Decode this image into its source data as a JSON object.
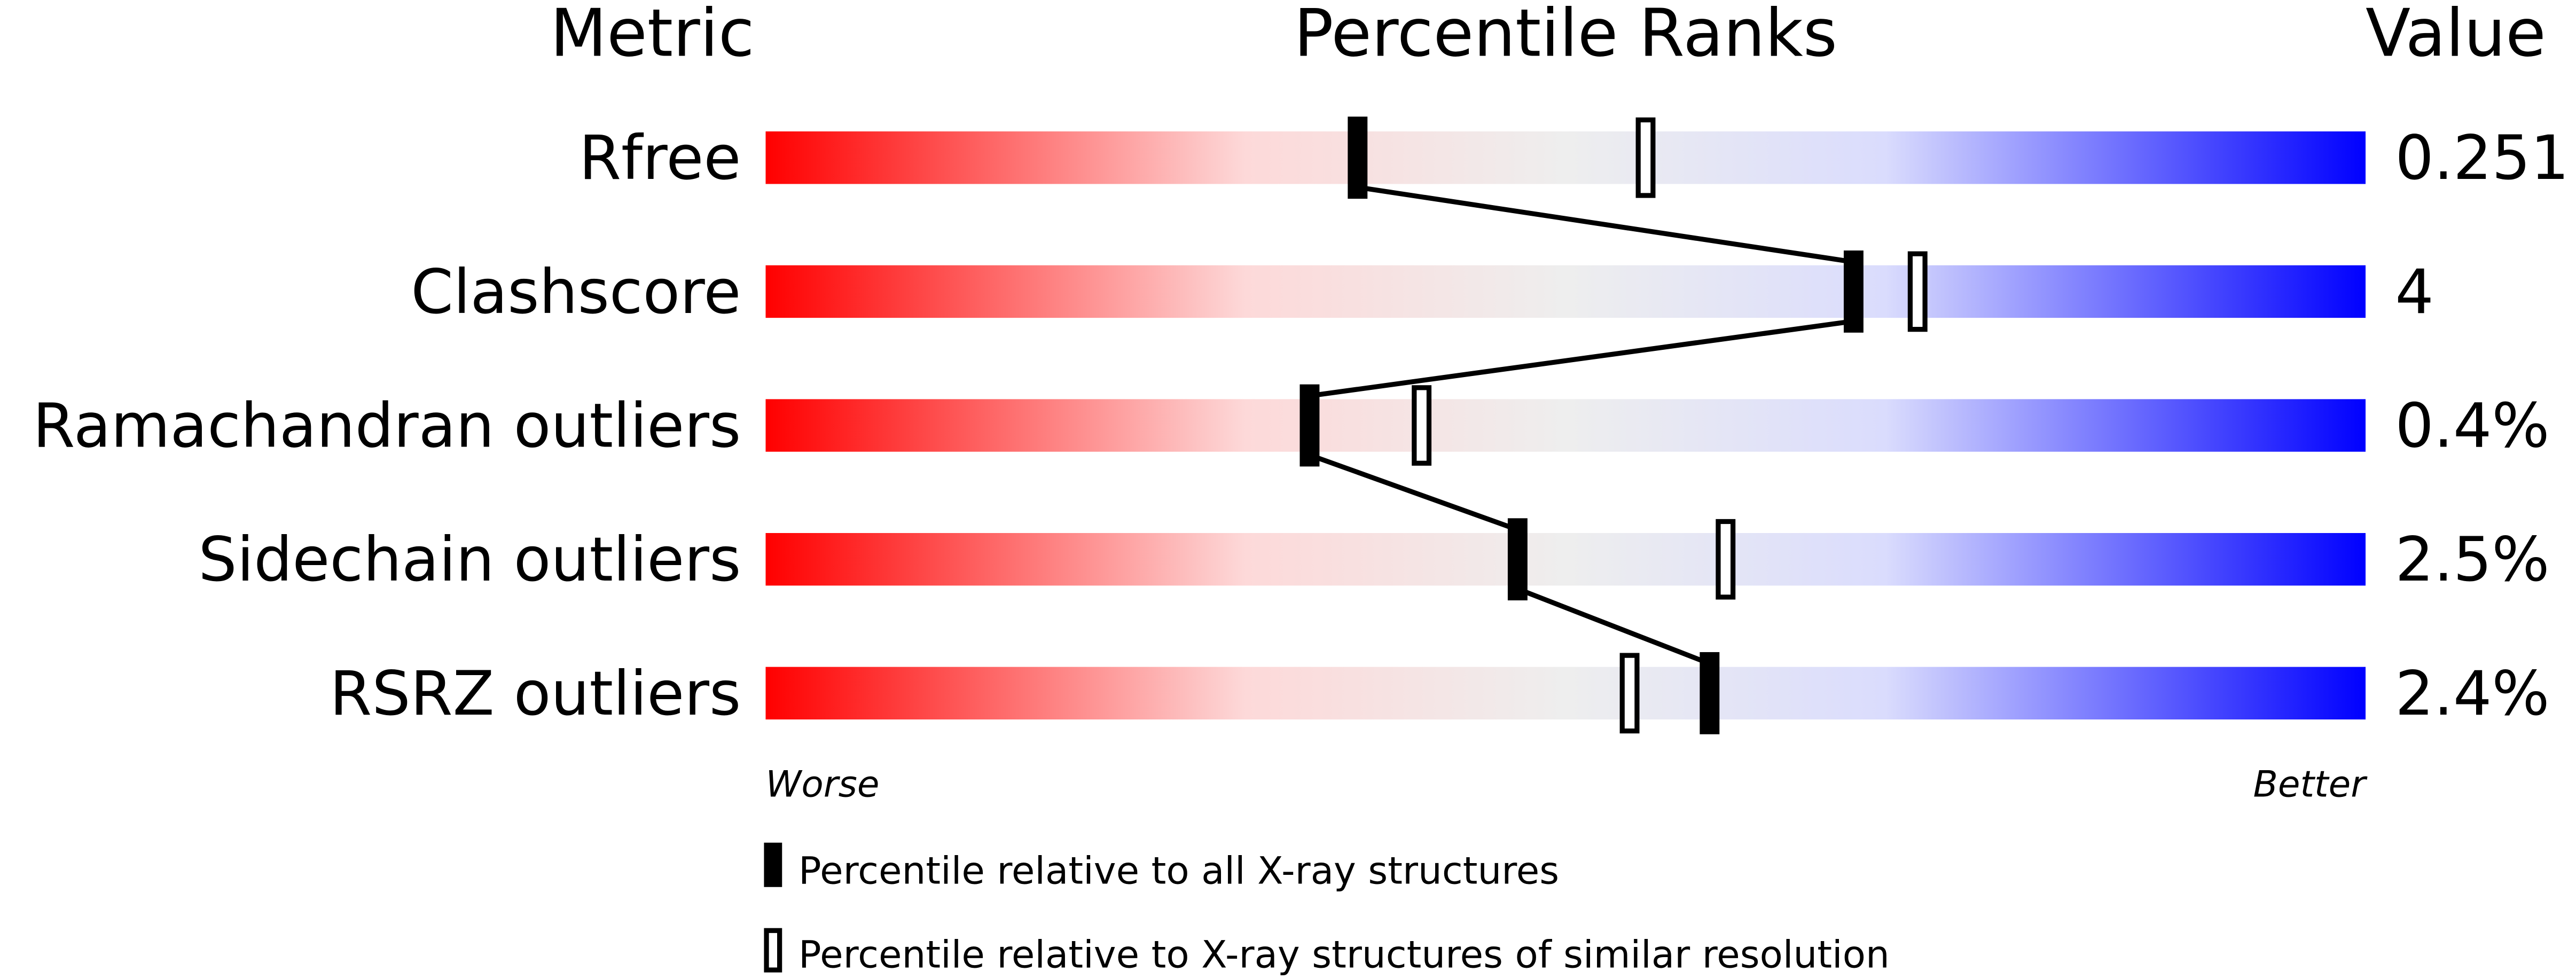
{
  "chart_data": {
    "type": "percentile-slider",
    "headers": {
      "metric": "Metric",
      "ranks": "Percentile Ranks",
      "value": "Value"
    },
    "xlim": [
      0,
      100
    ],
    "axis_labels": {
      "left": "Worse",
      "right": "Better"
    },
    "rows": [
      {
        "metric": "Rfree",
        "value": "0.251",
        "all": 37,
        "similar": 55
      },
      {
        "metric": "Clashscore",
        "value": "4",
        "all": 68,
        "similar": 72
      },
      {
        "metric": "Ramachandran outliers",
        "value": "0.4%",
        "all": 34,
        "similar": 41
      },
      {
        "metric": "Sidechain outliers",
        "value": "2.5%",
        "all": 47,
        "similar": 60
      },
      {
        "metric": "RSRZ outliers",
        "value": "2.4%",
        "all": 59,
        "similar": 54
      }
    ],
    "legend": [
      {
        "label": "Percentile relative to all X-ray structures",
        "marker": "filled"
      },
      {
        "label": "Percentile relative to X-ray structures of similar resolution",
        "marker": "hollow"
      }
    ],
    "colors": {
      "worse": "#ff0000",
      "middle": "#eeeeee",
      "better": "#0000ff"
    }
  }
}
